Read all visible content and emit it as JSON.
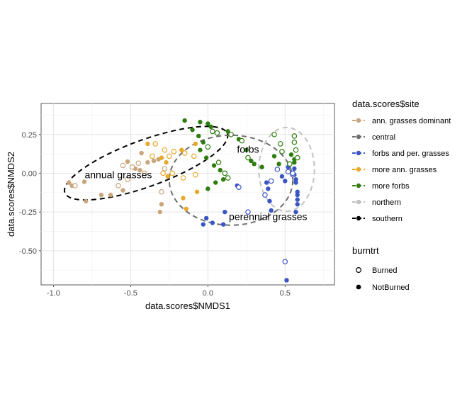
{
  "chart_data": {
    "type": "scatter",
    "xlabel": "data.scores$NMDS1",
    "ylabel": "data.scores$NMDS2",
    "xlim": [
      -1.08,
      0.82
    ],
    "ylim": [
      -0.72,
      0.45
    ],
    "x_ticks": [
      "-1.0",
      "-0.5",
      "0.0",
      "0.5"
    ],
    "x_tick_values": [
      -1.0,
      -0.5,
      0.0,
      0.5
    ],
    "y_ticks": [
      "-0.50",
      "-0.25",
      "0.00",
      "0.25"
    ],
    "y_tick_values": [
      -0.5,
      -0.25,
      0.0,
      0.25
    ],
    "grid": true,
    "legend_placement": "right",
    "colors": {
      "ann. grasses dominant": "#c8a57a",
      "central": "#6e6e6e",
      "forbs and per. grasses": "#3a55c4",
      "more ann. grasses": "#e8a82a",
      "more forbs": "#2f7d10",
      "northern": "#c2c2c2",
      "southern": "#000000"
    },
    "legends": [
      {
        "title": "data.scores$site",
        "entries": [
          "ann. grasses dominant",
          "central",
          "forbs and per. grasses",
          "more ann. grasses",
          "more forbs",
          "northern",
          "southern"
        ]
      },
      {
        "title": "burntrt",
        "entries": [
          "Burned",
          "NotBurned"
        ]
      }
    ],
    "annotations": [
      {
        "text": "annual grasses",
        "x": -0.58,
        "y": -0.01
      },
      {
        "text": "forbs",
        "x": 0.26,
        "y": 0.155
      },
      {
        "text": "perennial grasses",
        "x": 0.39,
        "y": -0.28
      }
    ],
    "ellipses": [
      {
        "site": "southern",
        "cx": -0.4,
        "cy": 0.065,
        "rx": 0.56,
        "ry": 0.15,
        "angle_deg": 20,
        "dash": "long"
      },
      {
        "site": "central",
        "cx": 0.15,
        "cy": -0.045,
        "rx": 0.4,
        "ry": 0.29,
        "angle_deg": 0,
        "dash": "long"
      },
      {
        "site": "northern",
        "cx": 0.51,
        "cy": 0.025,
        "rx": 0.18,
        "ry": 0.27,
        "angle_deg": 0,
        "dash": "long"
      }
    ],
    "series": [
      {
        "name": "ann. grasses dominant",
        "burned": [
          [
            -0.86,
            -0.08
          ],
          [
            -0.45,
            0.065
          ],
          [
            -0.49,
            0.04
          ],
          [
            -0.55,
            0.05
          ],
          [
            -0.52,
            -0.04
          ],
          [
            -0.58,
            -0.08
          ],
          [
            -0.3,
            -0.12
          ],
          [
            -0.41,
            0.0
          ],
          [
            -0.28,
            0.03
          ]
        ],
        "notburned": [
          [
            -0.9,
            -0.06
          ],
          [
            -0.88,
            -0.08
          ],
          [
            -0.8,
            -0.055
          ],
          [
            -0.79,
            -0.18
          ],
          [
            -0.69,
            -0.14
          ],
          [
            -0.63,
            -0.14
          ],
          [
            -0.55,
            -0.11
          ],
          [
            -0.52,
            0.075
          ],
          [
            -0.47,
            0.03
          ],
          [
            -0.44,
            0.02
          ],
          [
            -0.43,
            0.13
          ],
          [
            -0.39,
            0.07
          ],
          [
            -0.35,
            0.08
          ],
          [
            -0.32,
            0.09
          ],
          [
            -0.3,
            -0.2
          ],
          [
            -0.31,
            -0.25
          ]
        ]
      },
      {
        "name": "forbs and per. grasses",
        "burned": [
          [
            0.2,
            -0.09
          ],
          [
            0.26,
            -0.25
          ],
          [
            0.37,
            -0.14
          ],
          [
            0.41,
            -0.05
          ],
          [
            0.45,
            0.025
          ],
          [
            0.5,
            -0.57
          ],
          [
            0.52,
            0.01
          ],
          [
            0.55,
            -0.01
          ],
          [
            0.55,
            0.0
          ]
        ],
        "notburned": [
          [
            -0.01,
            -0.29
          ],
          [
            -0.03,
            -0.33
          ],
          [
            0.03,
            -0.32
          ],
          [
            0.1,
            -0.33
          ],
          [
            0.11,
            -0.25
          ],
          [
            0.19,
            -0.08
          ],
          [
            0.38,
            -0.06
          ],
          [
            0.39,
            -0.1
          ],
          [
            0.4,
            -0.18
          ],
          [
            0.41,
            -0.24
          ],
          [
            0.48,
            -0.02
          ],
          [
            0.5,
            -0.05
          ],
          [
            0.52,
            0.04
          ],
          [
            0.55,
            0.0
          ],
          [
            0.56,
            0.03
          ],
          [
            0.56,
            -0.01
          ],
          [
            0.57,
            -0.04
          ],
          [
            0.57,
            -0.06
          ],
          [
            0.58,
            -0.12
          ],
          [
            0.58,
            -0.14
          ],
          [
            0.58,
            -0.17
          ],
          [
            0.58,
            -0.2
          ],
          [
            0.57,
            -0.25
          ],
          [
            0.51,
            -0.69
          ]
        ]
      },
      {
        "name": "more ann. grasses",
        "burned": [
          [
            -0.34,
            0.19
          ],
          [
            -0.28,
            0.15
          ],
          [
            -0.36,
            0.11
          ],
          [
            -0.22,
            0.14
          ],
          [
            -0.15,
            0.13
          ],
          [
            -0.09,
            0.11
          ],
          [
            -0.29,
            0.0
          ],
          [
            -0.23,
            0.0
          ],
          [
            -0.25,
            0.11
          ],
          [
            -0.16,
            -0.03
          ],
          [
            -0.08,
            -0.01
          ]
        ],
        "notburned": [
          [
            -0.39,
            0.19
          ],
          [
            -0.3,
            0.1
          ],
          [
            -0.27,
            0.07
          ],
          [
            -0.26,
            -0.02
          ],
          [
            -0.17,
            0.15
          ],
          [
            -0.16,
            -0.16
          ],
          [
            -0.14,
            -0.23
          ],
          [
            -0.08,
            0.19
          ],
          [
            -0.07,
            -0.12
          ]
        ]
      },
      {
        "name": "more forbs",
        "burned": [
          [
            0.03,
            0.27
          ],
          [
            0.06,
            0.26
          ],
          [
            0.15,
            0.25
          ],
          [
            0.22,
            0.21
          ],
          [
            0.26,
            0.1
          ],
          [
            0.43,
            0.25
          ],
          [
            0.47,
            0.19
          ],
          [
            0.48,
            0.14
          ],
          [
            0.53,
            0.06
          ],
          [
            0.56,
            0.24
          ],
          [
            0.56,
            0.2
          ],
          [
            0.57,
            0.15
          ],
          [
            0.58,
            0.1
          ],
          [
            0.0,
            0.17
          ],
          [
            0.07,
            0.07
          ],
          [
            0.11,
            0.0
          ],
          [
            0.13,
            -0.03
          ]
        ],
        "notburned": [
          [
            -0.15,
            0.34
          ],
          [
            -0.05,
            0.33
          ],
          [
            0.0,
            0.32
          ],
          [
            0.02,
            0.3
          ],
          [
            0.13,
            0.27
          ],
          [
            0.2,
            0.22
          ],
          [
            0.25,
            0.15
          ],
          [
            0.28,
            0.08
          ],
          [
            0.3,
            0.06
          ],
          [
            0.35,
            0.04
          ],
          [
            0.43,
            0.11
          ],
          [
            0.46,
            0.06
          ],
          [
            0.54,
            0.12
          ],
          [
            0.56,
            0.09
          ],
          [
            0.56,
            0.07
          ],
          [
            -0.1,
            0.28
          ],
          [
            -0.06,
            0.24
          ],
          [
            -0.03,
            0.2
          ],
          [
            -0.05,
            0.15
          ],
          [
            -0.01,
            0.1
          ],
          [
            0.04,
            0.05
          ],
          [
            0.08,
            0.02
          ],
          [
            0.1,
            -0.04
          ],
          [
            0.05,
            -0.06
          ],
          [
            0.0,
            -0.1
          ]
        ]
      }
    ]
  }
}
